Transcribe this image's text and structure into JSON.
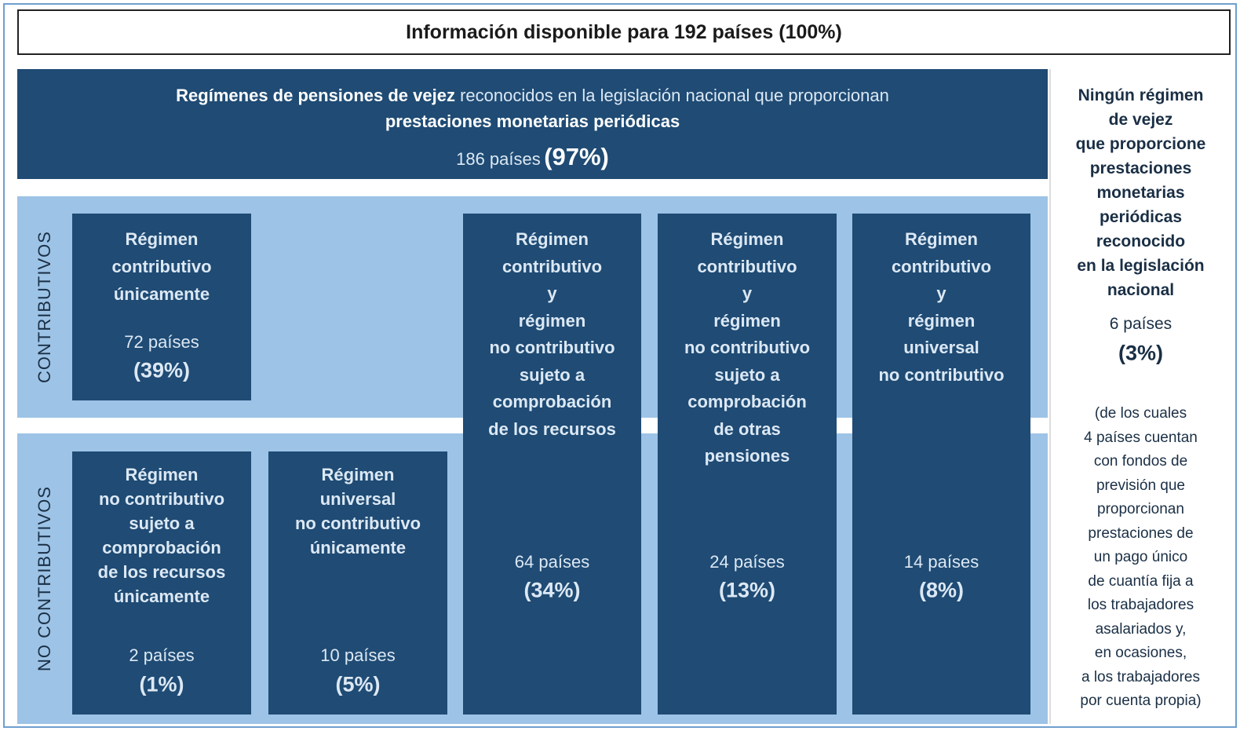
{
  "title": "Información disponible para 192 países (100%)",
  "header": {
    "bold": "Regímenes de pensiones de vejez",
    "normal": " reconocidos en la legislación nacional que proporcionan",
    "bold2": "prestaciones monetarias periódicas",
    "count": "186 países",
    "pct": "(97%)"
  },
  "side_labels": [
    "CONTRIBUTIVOS",
    "NO CONTRIBUTIVOS"
  ],
  "boxes": [
    {
      "title": [
        "Régimen",
        "contributivo",
        "únicamente"
      ],
      "count": "72 países",
      "pct": "(39%)"
    },
    {
      "title": [
        "Régimen",
        "no contributivo",
        "sujeto a",
        "comprobación",
        "de los recursos",
        "únicamente"
      ],
      "count": "2 países",
      "pct": "(1%)"
    },
    {
      "title": [
        "Régimen",
        "universal",
        "no contributivo",
        "únicamente"
      ],
      "count": "10 países",
      "pct": "(5%)"
    },
    {
      "title": [
        "Régimen",
        "contributivo",
        "y",
        "régimen",
        "no contributivo",
        "sujeto a",
        "comprobación",
        "de los recursos"
      ],
      "count": "64 países",
      "pct": "(34%)"
    },
    {
      "title": [
        "Régimen",
        "contributivo",
        "y",
        "régimen",
        "no contributivo",
        "sujeto  a",
        "comprobación",
        "de otras",
        "pensiones"
      ],
      "count": "24 países",
      "pct": "(13%)"
    },
    {
      "title": [
        "Régimen",
        "contributivo",
        "y",
        "régimen",
        "universal",
        "no contributivo"
      ],
      "count": "14 países",
      "pct": "(8%)"
    }
  ],
  "none": {
    "title": [
      "Ningún régimen",
      "de vejez",
      "que proporcione",
      "prestaciones",
      "monetarias",
      "periódicas",
      "reconocido",
      "en la legislación",
      "nacional"
    ],
    "count": "6 países",
    "pct": "(3%)",
    "note": [
      "(de los cuales",
      "4 países cuentan",
      "con fondos de",
      "previsión que",
      "proporcionan",
      "prestaciones de",
      "un pago único",
      "de cuantía fija a",
      "los trabajadores",
      "asalariados y,",
      "en ocasiones,",
      "a los trabajadores",
      "por cuenta propia)"
    ]
  }
}
